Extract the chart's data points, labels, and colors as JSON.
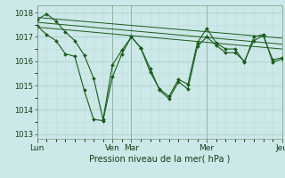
{
  "xlabel": "Pression niveau de la mer( hPa )",
  "bg_color": "#cce8e8",
  "grid_major_color": "#aacccc",
  "grid_minor_color": "#c0dcdc",
  "line_color": "#1a5c1a",
  "ylim": [
    1012.8,
    1018.3
  ],
  "xlim": [
    0,
    13
  ],
  "yticks": [
    1013,
    1014,
    1015,
    1016,
    1017,
    1018
  ],
  "tick_labels": [
    "Lun",
    "Ven",
    "Mar",
    "Mer",
    "Jeu"
  ],
  "tick_positions": [
    0,
    4,
    5,
    9,
    13
  ],
  "series1_x": [
    0,
    0.5,
    1.0,
    1.5,
    2.0,
    2.5,
    3.0,
    3.5,
    4.0,
    4.5,
    5.0,
    5.5,
    6.0,
    6.5,
    7.0,
    7.5,
    8.0,
    8.5,
    9.0,
    9.5,
    10.0,
    10.5,
    11.0,
    11.5,
    12.0,
    12.5,
    13.0
  ],
  "series1_y": [
    1017.45,
    1017.1,
    1016.85,
    1016.3,
    1016.2,
    1014.8,
    1013.6,
    1013.55,
    1015.35,
    1016.3,
    1017.0,
    1016.55,
    1015.7,
    1014.8,
    1014.45,
    1015.15,
    1014.85,
    1016.6,
    1017.0,
    1016.65,
    1016.35,
    1016.35,
    1016.0,
    1016.85,
    1017.05,
    1016.05,
    1016.15
  ],
  "series2_x": [
    0,
    0.5,
    1.0,
    1.5,
    2.0,
    2.5,
    3.0,
    3.5,
    4.0,
    4.5,
    5.0,
    5.5,
    6.0,
    6.5,
    7.0,
    7.5,
    8.0,
    8.5,
    9.0,
    9.5,
    10.0,
    10.5,
    11.0,
    11.5,
    12.0,
    12.5,
    13.0
  ],
  "series2_y": [
    1017.7,
    1017.95,
    1017.65,
    1017.2,
    1016.85,
    1016.25,
    1015.3,
    1013.6,
    1015.85,
    1016.45,
    1017.0,
    1016.55,
    1015.55,
    1014.85,
    1014.55,
    1015.25,
    1015.05,
    1016.75,
    1017.35,
    1016.75,
    1016.5,
    1016.5,
    1015.95,
    1017.0,
    1017.1,
    1015.95,
    1016.1
  ],
  "trend1_x": [
    0,
    13
  ],
  "trend1_y": [
    1017.8,
    1016.95
  ],
  "trend2_x": [
    0,
    13
  ],
  "trend2_y": [
    1017.6,
    1016.7
  ],
  "trend3_x": [
    0,
    13
  ],
  "trend3_y": [
    1017.4,
    1016.5
  ]
}
